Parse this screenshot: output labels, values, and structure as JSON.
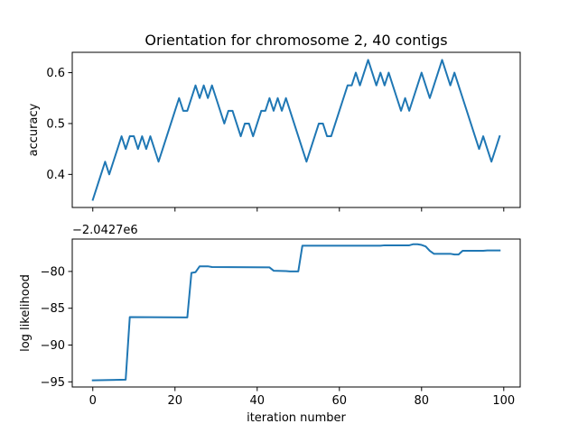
{
  "chart_data": [
    {
      "type": "line",
      "title": "Orientation for chromosome 2, 40 contigs",
      "xlabel": "",
      "ylabel": "accuracy",
      "xlim": [
        -5,
        104
      ],
      "ylim": [
        0.335,
        0.64
      ],
      "xticks": [
        0,
        20,
        40,
        60,
        80,
        100
      ],
      "show_xtick_labels": false,
      "yticks": [
        0.4,
        0.5,
        0.6
      ],
      "ytick_labels": [
        "0.4",
        "0.5",
        "0.6"
      ],
      "grid": false,
      "series": [
        {
          "color": "#1f77b4",
          "x": [
            0,
            1,
            2,
            3,
            4,
            5,
            6,
            7,
            8,
            9,
            10,
            11,
            12,
            13,
            14,
            15,
            16,
            17,
            18,
            19,
            20,
            21,
            22,
            23,
            24,
            25,
            26,
            27,
            28,
            29,
            30,
            31,
            32,
            33,
            34,
            35,
            36,
            37,
            38,
            39,
            40,
            41,
            42,
            43,
            44,
            45,
            46,
            47,
            48,
            49,
            50,
            51,
            52,
            53,
            54,
            55,
            56,
            57,
            58,
            59,
            60,
            61,
            62,
            63,
            64,
            65,
            66,
            67,
            68,
            69,
            70,
            71,
            72,
            73,
            74,
            75,
            76,
            77,
            78,
            79,
            80,
            81,
            82,
            83,
            84,
            85,
            86,
            87,
            88,
            89,
            90,
            91,
            92,
            93,
            94,
            95,
            96,
            97,
            98,
            99
          ],
          "y": [
            0.35,
            0.375,
            0.4,
            0.425,
            0.4,
            0.425,
            0.45,
            0.475,
            0.45,
            0.475,
            0.475,
            0.45,
            0.475,
            0.45,
            0.475,
            0.45,
            0.425,
            0.45,
            0.475,
            0.5,
            0.525,
            0.55,
            0.525,
            0.525,
            0.55,
            0.575,
            0.55,
            0.575,
            0.55,
            0.575,
            0.55,
            0.525,
            0.5,
            0.525,
            0.525,
            0.5,
            0.475,
            0.5,
            0.5,
            0.475,
            0.5,
            0.525,
            0.525,
            0.55,
            0.525,
            0.55,
            0.525,
            0.55,
            0.525,
            0.5,
            0.475,
            0.45,
            0.425,
            0.45,
            0.475,
            0.5,
            0.5,
            0.475,
            0.475,
            0.5,
            0.525,
            0.55,
            0.575,
            0.575,
            0.6,
            0.575,
            0.6,
            0.625,
            0.6,
            0.575,
            0.6,
            0.575,
            0.6,
            0.575,
            0.55,
            0.525,
            0.55,
            0.525,
            0.55,
            0.575,
            0.6,
            0.575,
            0.55,
            0.575,
            0.6,
            0.625,
            0.6,
            0.575,
            0.6,
            0.575,
            0.55,
            0.525,
            0.5,
            0.475,
            0.45,
            0.475,
            0.45,
            0.425,
            0.45,
            0.475
          ]
        }
      ]
    },
    {
      "type": "line",
      "xlabel": "iteration number",
      "ylabel": "log likelihood",
      "offset_label": "−2.0427e6",
      "xlim": [
        -5,
        104
      ],
      "ylim": [
        -95.7,
        -75.6
      ],
      "xticks": [
        0,
        20,
        40,
        60,
        80,
        100
      ],
      "xtick_labels": [
        "0",
        "20",
        "40",
        "60",
        "80",
        "100"
      ],
      "yticks": [
        -95,
        -90,
        -85,
        -80
      ],
      "ytick_labels": [
        "−95",
        "−90",
        "−85",
        "−80"
      ],
      "grid": false,
      "series": [
        {
          "color": "#1f77b4",
          "x": [
            0,
            8,
            9,
            23,
            24,
            25,
            26,
            28,
            29,
            43,
            44,
            47,
            48,
            50,
            51,
            70,
            71,
            77,
            78,
            79,
            80,
            81,
            82,
            83,
            84,
            85,
            86,
            87,
            88,
            89,
            90,
            91,
            92,
            93,
            94,
            95,
            96,
            97,
            98,
            99
          ],
          "y": [
            -94.8,
            -94.7,
            -86.2,
            -86.25,
            -80.2,
            -80.1,
            -79.3,
            -79.3,
            -79.4,
            -79.45,
            -79.9,
            -79.95,
            -80.0,
            -80.0,
            -76.5,
            -76.5,
            -76.45,
            -76.45,
            -76.3,
            -76.3,
            -76.4,
            -76.6,
            -77.2,
            -77.6,
            -77.6,
            -77.6,
            -77.6,
            -77.6,
            -77.7,
            -77.7,
            -77.2,
            -77.2,
            -77.2,
            -77.2,
            -77.2,
            -77.2,
            -77.15,
            -77.15,
            -77.15,
            -77.15
          ]
        }
      ]
    }
  ]
}
